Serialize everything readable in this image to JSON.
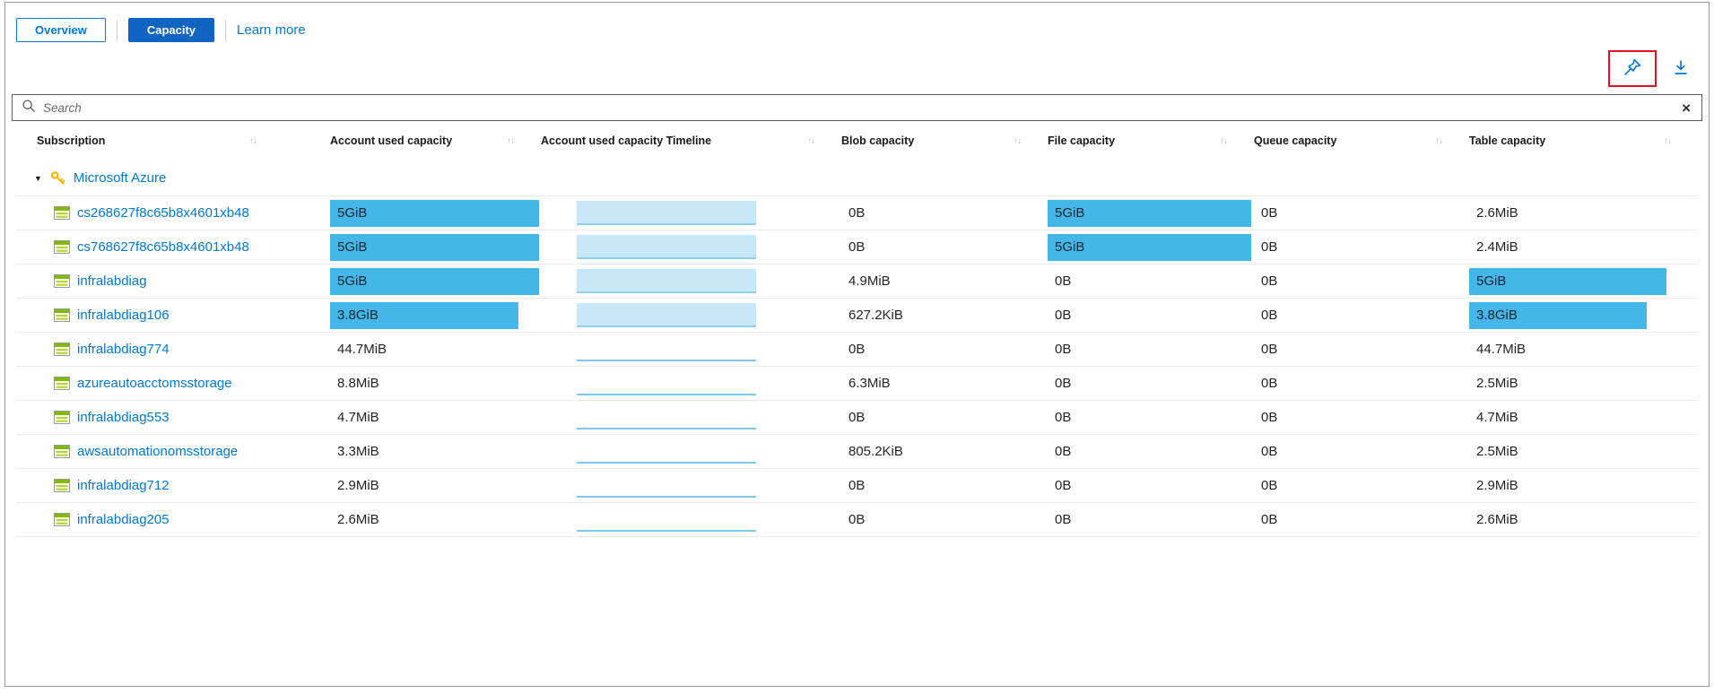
{
  "tabs": {
    "overview": "Overview",
    "capacity": "Capacity",
    "learn_more": "Learn more"
  },
  "toolbar": {
    "pin_icon": "pin",
    "download_icon": "download"
  },
  "search": {
    "placeholder": "Search",
    "clear_icon": "×"
  },
  "table": {
    "sort_icon": "↑↓",
    "columns": [
      {
        "key": "subscription",
        "label": "Subscription",
        "sortable": true
      },
      {
        "key": "account-used-capacity",
        "label": "Account used capacity",
        "sortable": true
      },
      {
        "key": "account-used-capacity-timeline",
        "label": "Account used capacity Timeline",
        "sortable": true
      },
      {
        "key": "blob-capacity",
        "label": "Blob capacity",
        "sortable": true
      },
      {
        "key": "file-capacity",
        "label": "File capacity",
        "sortable": true
      },
      {
        "key": "queue-capacity",
        "label": "Queue capacity",
        "sortable": true
      },
      {
        "key": "table-capacity",
        "label": "Table capacity",
        "sortable": true
      }
    ],
    "group": {
      "label": "Microsoft Azure",
      "collapse_icon": "▼"
    },
    "rows": [
      {
        "name": "cs268627f8c65b8x4601xb48",
        "used": "5GiB",
        "used_bar": 1,
        "timeline": "block",
        "blob": "0B",
        "file": "5GiB",
        "file_bar": 1,
        "queue": "0B",
        "table": "2.6MiB",
        "table_bar": null
      },
      {
        "name": "cs768627f8c65b8x4601xb48",
        "used": "5GiB",
        "used_bar": 1,
        "timeline": "block",
        "blob": "0B",
        "file": "5GiB",
        "file_bar": 1,
        "queue": "0B",
        "table": "2.4MiB",
        "table_bar": null
      },
      {
        "name": "infralabdiag",
        "used": "5GiB",
        "used_bar": 1,
        "timeline": "block",
        "blob": "4.9MiB",
        "file": "0B",
        "file_bar": null,
        "queue": "0B",
        "table": "5GiB",
        "table_bar": 1
      },
      {
        "name": "infralabdiag106",
        "used": "3.8GiB",
        "used_bar": 0.9,
        "timeline": "block",
        "blob": "627.2KiB",
        "file": "0B",
        "file_bar": null,
        "queue": "0B",
        "table": "3.8GiB",
        "table_bar": 0.9
      },
      {
        "name": "infralabdiag774",
        "used": "44.7MiB",
        "used_bar": null,
        "timeline": "line",
        "blob": "0B",
        "file": "0B",
        "file_bar": null,
        "queue": "0B",
        "table": "44.7MiB",
        "table_bar": null
      },
      {
        "name": "azureautoacctomsstorage",
        "used": "8.8MiB",
        "used_bar": null,
        "timeline": "line",
        "blob": "6.3MiB",
        "file": "0B",
        "file_bar": null,
        "queue": "0B",
        "table": "2.5MiB",
        "table_bar": null
      },
      {
        "name": "infralabdiag553",
        "used": "4.7MiB",
        "used_bar": null,
        "timeline": "line",
        "blob": "0B",
        "file": "0B",
        "file_bar": null,
        "queue": "0B",
        "table": "4.7MiB",
        "table_bar": null
      },
      {
        "name": "awsautomationomsstorage",
        "used": "3.3MiB",
        "used_bar": null,
        "timeline": "line",
        "blob": "805.2KiB",
        "file": "0B",
        "file_bar": null,
        "queue": "0B",
        "table": "2.5MiB",
        "table_bar": null
      },
      {
        "name": "infralabdiag712",
        "used": "2.9MiB",
        "used_bar": null,
        "timeline": "line",
        "blob": "0B",
        "file": "0B",
        "file_bar": null,
        "queue": "0B",
        "table": "2.9MiB",
        "table_bar": null
      },
      {
        "name": "infralabdiag205",
        "used": "2.6MiB",
        "used_bar": null,
        "timeline": "line",
        "blob": "0B",
        "file": "0B",
        "file_bar": null,
        "queue": "0B",
        "table": "2.6MiB",
        "table_bar": null
      }
    ]
  },
  "colors": {
    "accent": "#0078d4",
    "capacity_tab_bg": "#1164c2",
    "bar_fill": "#45b6e8",
    "timeline_fill": "#c7e8f8",
    "timeline_edge": "#8fd0f0",
    "timeline_line": "#7fc9ee",
    "highlight_red": "#e81123"
  }
}
